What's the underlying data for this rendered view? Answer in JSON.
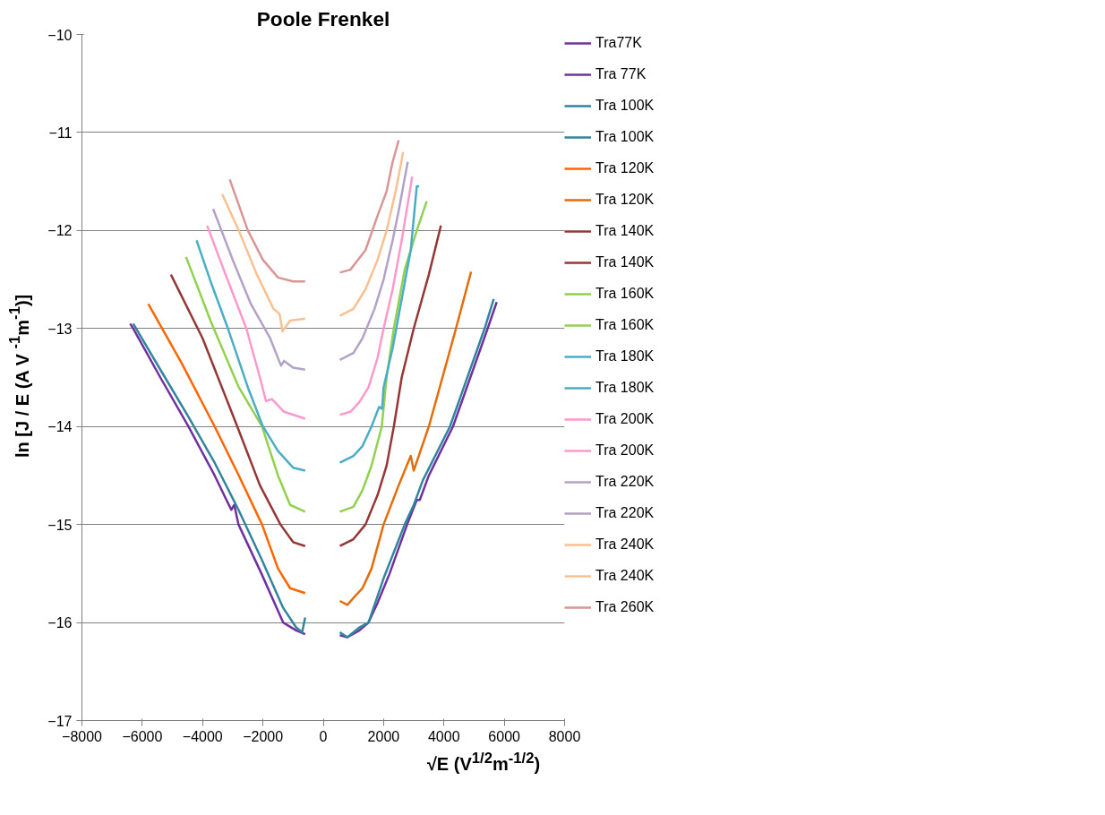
{
  "chart_data": {
    "type": "line",
    "title": "Poole Frenkel",
    "xlabel": "√E  (V$^{1/2}$m$^{-1/2}$)",
    "ylabel": "ln [J / E (A V $^{-1}$m$^{-1}$)]",
    "xlim": [
      -8000,
      8000
    ],
    "ylim": [
      -17,
      -10
    ],
    "xticks": [
      -8000,
      -6000,
      -4000,
      -2000,
      0,
      2000,
      4000,
      6000,
      8000
    ],
    "yticks": [
      -17,
      -16,
      -15,
      -14,
      -13,
      -12,
      -11,
      -10
    ],
    "grid": "y",
    "legend": "right",
    "line_style": "solid",
    "series": [
      {
        "name": "Tra77K",
        "color": "#7030a0",
        "x": [
          -6400,
          -6300,
          -5400,
          -4470,
          -3600,
          -3050,
          -2950,
          -2810,
          -2050,
          -1330,
          -900,
          -600
        ],
        "values": [
          -12.95,
          -13.0,
          -13.5,
          -14.0,
          -14.5,
          -14.85,
          -14.8,
          -15.0,
          -15.5,
          -16.0,
          -16.08,
          -16.12
        ]
      },
      {
        "name": "Tra 77K",
        "color": "#7030a0",
        "x": [
          550,
          800,
          1200,
          1500,
          1800,
          2200,
          2780,
          3100,
          3200,
          3500,
          4300,
          5450,
          5750
        ],
        "values": [
          -16.13,
          -16.15,
          -16.08,
          -16.0,
          -15.8,
          -15.5,
          -15.0,
          -14.75,
          -14.75,
          -14.5,
          -14.0,
          -13.0,
          -12.73
        ]
      },
      {
        "name": "Tra 100K",
        "color": "#31859c",
        "x": [
          -6300,
          -5400,
          -4470,
          -3600,
          -2810,
          -2050,
          -1330,
          -900,
          -700,
          -600
        ],
        "values": [
          -12.95,
          -13.42,
          -13.9,
          -14.37,
          -14.85,
          -15.35,
          -15.85,
          -16.05,
          -16.1,
          -15.95
        ]
      },
      {
        "name": "Tra 100K",
        "color": "#31859c",
        "x": [
          550,
          800,
          1200,
          1500,
          2000,
          2700,
          3000,
          3300,
          4200,
          5350,
          5650
        ],
        "values": [
          -16.1,
          -16.15,
          -16.05,
          -16.0,
          -15.55,
          -15.0,
          -14.8,
          -14.55,
          -14.0,
          -13.0,
          -12.7
        ]
      },
      {
        "name": "Tra 120K",
        "color": "#ff6600",
        "x": [
          -5800,
          -4700,
          -3600,
          -2800,
          -2030,
          -1500,
          -1100,
          -600
        ],
        "values": [
          -12.75,
          -13.35,
          -14.0,
          -14.5,
          -15.0,
          -15.45,
          -15.65,
          -15.7
        ]
      },
      {
        "name": "Tra 120K",
        "color": "#e46c0a",
        "x": [
          550,
          800,
          1000,
          1300,
          1600,
          2000,
          2500,
          2900,
          3000,
          3500,
          4400,
          4900
        ],
        "values": [
          -15.78,
          -15.82,
          -15.75,
          -15.65,
          -15.45,
          -15.0,
          -14.6,
          -14.3,
          -14.45,
          -14.0,
          -13.0,
          -12.42
        ]
      },
      {
        "name": "Tra 140K",
        "color": "#953735",
        "x": [
          -5050,
          -4000,
          -2850,
          -2100,
          -1420,
          -1000,
          -600
        ],
        "values": [
          -12.45,
          -13.1,
          -14.0,
          -14.6,
          -15.0,
          -15.18,
          -15.22
        ]
      },
      {
        "name": "Tra 140K",
        "color": "#953735",
        "x": [
          550,
          1000,
          1400,
          1800,
          2100,
          2340,
          2600,
          3000,
          3500,
          3900
        ],
        "values": [
          -15.22,
          -15.15,
          -15.0,
          -14.7,
          -14.4,
          -14.0,
          -13.5,
          -13.0,
          -12.45,
          -11.95
        ]
      },
      {
        "name": "Tra 160K",
        "color": "#92d050",
        "x": [
          -4550,
          -3700,
          -2800,
          -2030,
          -1500,
          -1100,
          -600
        ],
        "values": [
          -12.27,
          -12.95,
          -13.6,
          -14.0,
          -14.5,
          -14.8,
          -14.87
        ]
      },
      {
        "name": "Tra 160K",
        "color": "#92d050",
        "x": [
          550,
          1000,
          1300,
          1600,
          1940,
          2100,
          2340,
          2700,
          3100,
          3430
        ],
        "values": [
          -14.87,
          -14.82,
          -14.65,
          -14.4,
          -14.0,
          -13.5,
          -13.0,
          -12.4,
          -12.0,
          -11.7
        ]
      },
      {
        "name": "Tra 180K",
        "color": "#4bacc6",
        "x": [
          -4200,
          -3700,
          -3160,
          -2500,
          -2000,
          -1500,
          -1000,
          -600
        ],
        "values": [
          -12.1,
          -12.55,
          -13.0,
          -13.6,
          -14.0,
          -14.25,
          -14.42,
          -14.45
        ]
      },
      {
        "name": "Tra 180K",
        "color": "#4bacc6",
        "x": [
          550,
          1000,
          1300,
          1600,
          1850,
          1950,
          2000,
          2300,
          2600,
          2900,
          3100,
          3180
        ],
        "values": [
          -14.37,
          -14.3,
          -14.2,
          -14.0,
          -13.8,
          -13.82,
          -13.6,
          -13.2,
          -12.7,
          -12.2,
          -11.55,
          -11.55
        ]
      },
      {
        "name": "Tra 200K",
        "color": "#ff99cc",
        "x": [
          -3850,
          -3300,
          -2550,
          -2100,
          -1900,
          -1700,
          -1300,
          -600
        ],
        "values": [
          -11.95,
          -12.4,
          -13.0,
          -13.5,
          -13.74,
          -13.72,
          -13.85,
          -13.92
        ]
      },
      {
        "name": "Tra 200K",
        "color": "#ff99cc",
        "x": [
          550,
          900,
          1200,
          1500,
          1800,
          2000,
          2300,
          2600,
          2950
        ],
        "values": [
          -13.88,
          -13.85,
          -13.75,
          -13.6,
          -13.3,
          -13.0,
          -12.6,
          -12.1,
          -11.45
        ]
      },
      {
        "name": "Tra 220K",
        "color": "#b3a2c7",
        "x": [
          -3650,
          -3000,
          -2400,
          -1760,
          -1400,
          -1300,
          -1000,
          -600
        ],
        "values": [
          -11.78,
          -12.3,
          -12.75,
          -13.1,
          -13.38,
          -13.33,
          -13.4,
          -13.42
        ]
      },
      {
        "name": "Tra 220K",
        "color": "#b3a2c7",
        "x": [
          550,
          1000,
          1300,
          1700,
          2000,
          2300,
          2500,
          2800
        ],
        "values": [
          -13.32,
          -13.25,
          -13.1,
          -12.8,
          -12.5,
          -12.1,
          -11.8,
          -11.3
        ]
      },
      {
        "name": "Tra 240K",
        "color": "#fac090",
        "x": [
          -3350,
          -2800,
          -2200,
          -1650,
          -1450,
          -1350,
          -1100,
          -600
        ],
        "values": [
          -11.63,
          -12.0,
          -12.45,
          -12.8,
          -12.85,
          -13.03,
          -12.92,
          -12.9
        ]
      },
      {
        "name": "Tra 240K",
        "color": "#fac090",
        "x": [
          550,
          1000,
          1400,
          1800,
          2100,
          2400,
          2650
        ],
        "values": [
          -12.87,
          -12.8,
          -12.6,
          -12.3,
          -12.0,
          -11.6,
          -11.2
        ]
      },
      {
        "name": "Tra 260K",
        "color": "#d99694",
        "x": [
          -3100,
          -2500,
          -2000,
          -1500,
          -1000,
          -600,
          null,
          550,
          900,
          1400,
          1800,
          2100,
          2300,
          2500
        ],
        "values": [
          -11.48,
          -12.0,
          -12.3,
          -12.48,
          -12.52,
          -12.52,
          null,
          -12.43,
          -12.4,
          -12.2,
          -11.85,
          -11.6,
          -11.3,
          -11.08
        ]
      }
    ]
  }
}
